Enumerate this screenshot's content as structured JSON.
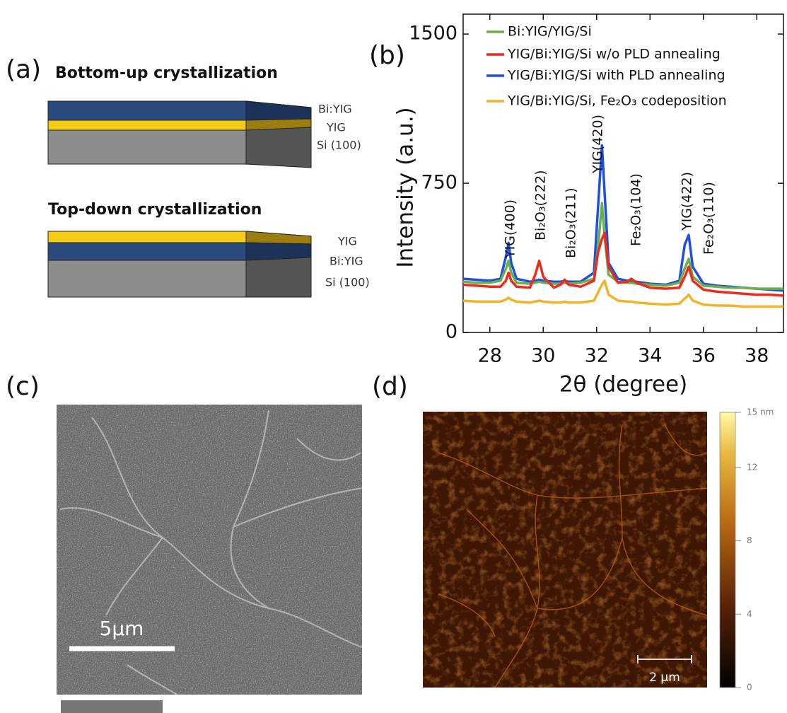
{
  "panel_labels": [
    "(a)",
    "(b)",
    "(c)",
    "(d)"
  ],
  "panel_a": {
    "bottom_up": {
      "title": "Bottom-up crystallization",
      "layers": [
        "Bi:YIG",
        "YIG",
        "Si (100)"
      ]
    },
    "top_down": {
      "title": "Top-down crystallization",
      "layers": [
        "YIG",
        "Bi:YIG",
        "Si (100)"
      ]
    }
  },
  "chart_data": {
    "type": "line",
    "x_label": "2θ (degree)",
    "y_label": "Intensity (a.u.)",
    "xlim": [
      27,
      39
    ],
    "xticks": [
      28,
      30,
      32,
      34,
      36,
      38
    ],
    "ylim": [
      0,
      1600
    ],
    "yticks": [
      0,
      750,
      1500
    ],
    "annotations": [
      "YIG(400)",
      "Bi₂O₃(222)",
      "Bi₂O₃(211)",
      "YIG(420)",
      "Fe₂O₃(104)",
      "YIG(422)",
      "Fe₂O₃(110)"
    ],
    "x": [
      27,
      27.5,
      28,
      28.4,
      28.6,
      28.7,
      28.8,
      29.0,
      29.5,
      29.7,
      29.85,
      30.0,
      30.4,
      30.65,
      30.8,
      30.95,
      31.4,
      31.9,
      32.05,
      32.2,
      32.3,
      32.45,
      32.8,
      33.15,
      33.3,
      33.5,
      34.0,
      34.6,
      35.1,
      35.3,
      35.45,
      35.6,
      36.0,
      36.5,
      37.0,
      37.5,
      38.0,
      38.5,
      39.0
    ],
    "series": [
      {
        "name": "Bi:YIG/YIG/Si",
        "color": "#6ab04c",
        "values": [
          255,
          250,
          250,
          260,
          320,
          360,
          300,
          250,
          245,
          250,
          255,
          250,
          245,
          245,
          250,
          245,
          250,
          270,
          420,
          650,
          480,
          290,
          255,
          250,
          250,
          245,
          240,
          235,
          250,
          320,
          370,
          280,
          235,
          230,
          225,
          225,
          220,
          220,
          220
        ]
      },
      {
        "name": "YIG/Bi:YIG/Si w/o PLD annealing",
        "color": "#ee2a1b",
        "values": [
          240,
          235,
          230,
          230,
          260,
          300,
          260,
          230,
          225,
          290,
          360,
          280,
          225,
          240,
          265,
          240,
          230,
          260,
          400,
          470,
          500,
          330,
          250,
          255,
          270,
          250,
          225,
          220,
          225,
          280,
          330,
          260,
          215,
          205,
          200,
          195,
          190,
          190,
          185
        ]
      },
      {
        "name": "YIG/Bi:YIG/Si with PLD annealing",
        "color": "#1f4fe0",
        "values": [
          270,
          265,
          260,
          270,
          380,
          450,
          350,
          270,
          255,
          260,
          265,
          260,
          255,
          255,
          260,
          255,
          255,
          300,
          620,
          940,
          700,
          350,
          270,
          260,
          260,
          255,
          245,
          240,
          260,
          440,
          490,
          330,
          245,
          235,
          230,
          225,
          220,
          215,
          210
        ]
      },
      {
        "name": "YIG/Bi:YIG/Si, Fe₂O₃ codeposition",
        "color": "#f0b429",
        "values": [
          160,
          155,
          155,
          155,
          165,
          175,
          165,
          155,
          150,
          155,
          160,
          155,
          150,
          150,
          155,
          150,
          150,
          160,
          200,
          240,
          260,
          190,
          160,
          155,
          155,
          150,
          145,
          140,
          145,
          170,
          190,
          160,
          140,
          135,
          135,
          130,
          130,
          130,
          130
        ]
      }
    ]
  },
  "panel_c": {
    "scale_bar": "5μm"
  },
  "panel_d": {
    "scale_bar": "2 μm",
    "colorbar_lim": [
      0,
      15
    ],
    "colorbar_ticks": [
      0,
      4,
      8,
      12,
      {
        "value": 15,
        "label": "15 nm"
      }
    ]
  }
}
